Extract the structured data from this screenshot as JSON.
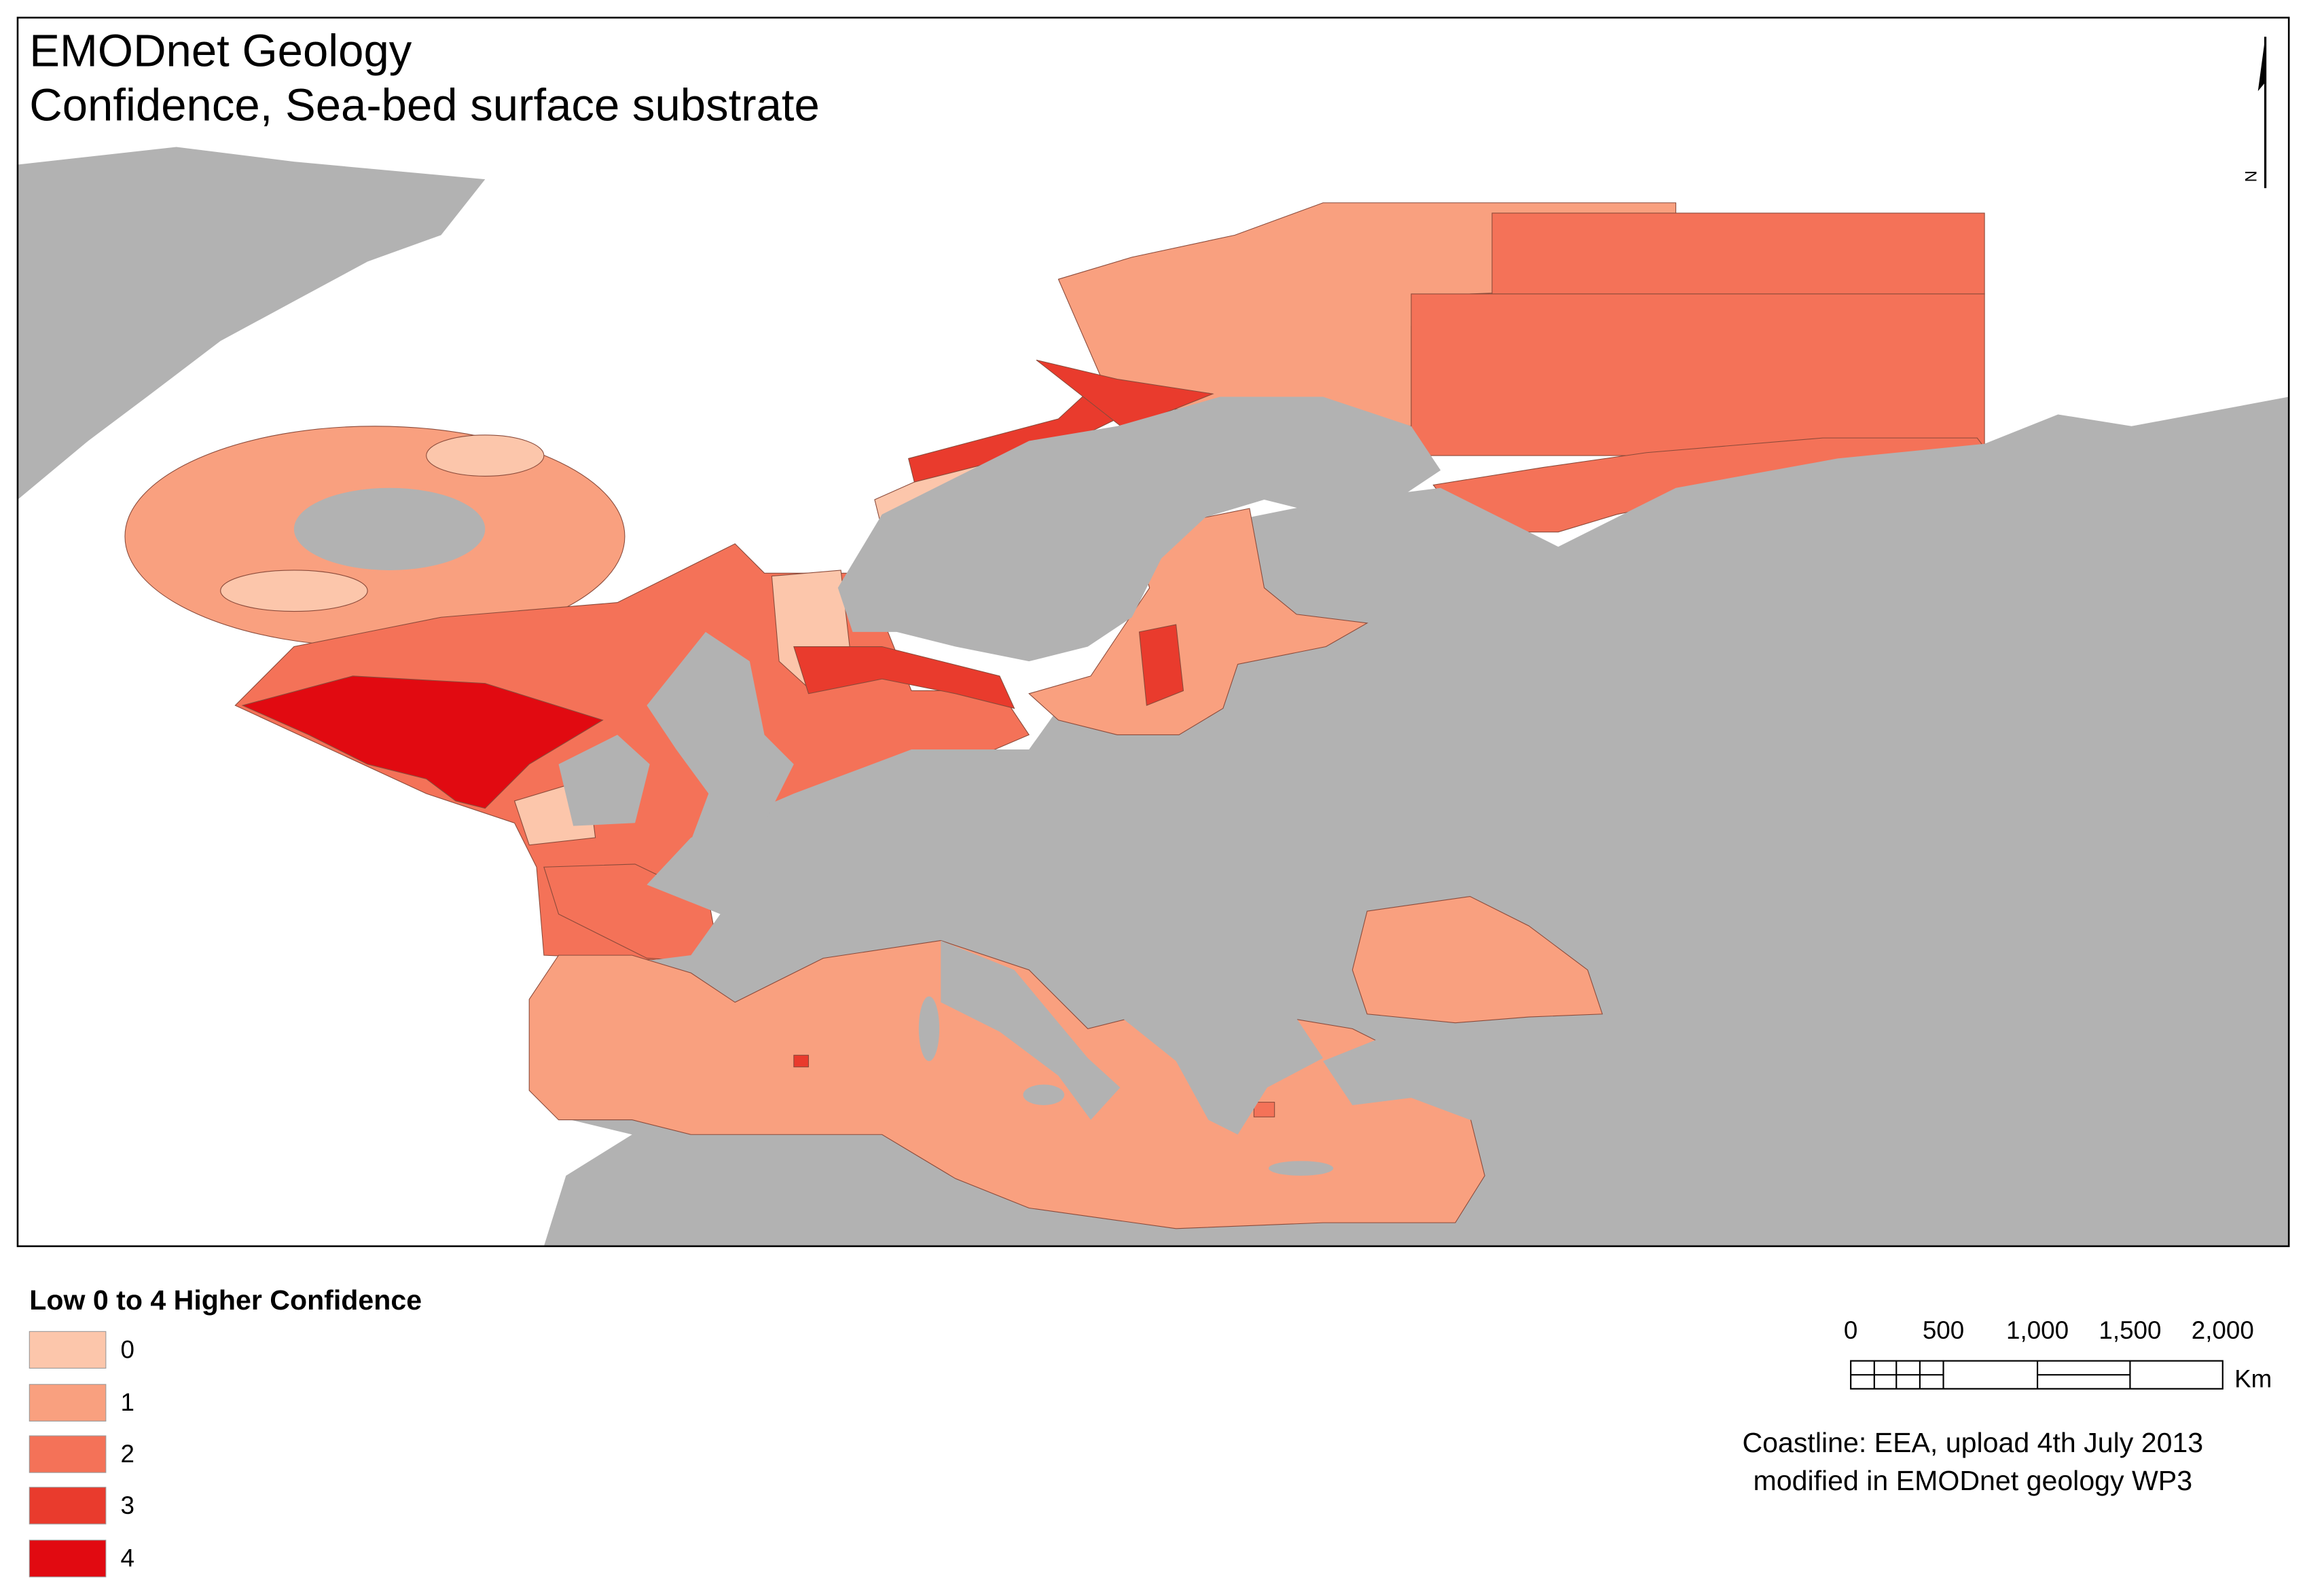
{
  "header": {
    "title": "EMODnet Geology",
    "subtitle": "Confidence, Sea-bed surface substrate"
  },
  "north_arrow": {
    "label": "N"
  },
  "legend": {
    "title": "Low 0 to 4 Higher Confidence",
    "items": [
      {
        "label": "0",
        "color": "#fcc6ab"
      },
      {
        "label": "1",
        "color": "#f9a07f"
      },
      {
        "label": "2",
        "color": "#f47258"
      },
      {
        "label": "3",
        "color": "#e93b2d"
      },
      {
        "label": "4",
        "color": "#e10a11"
      }
    ]
  },
  "scale_bar": {
    "labels": [
      "0",
      "500",
      "1,000",
      "1,500",
      "2,000"
    ],
    "unit": "Km"
  },
  "credits": [
    "Coastline: EEA, upload 4th July 2013",
    "modified in EMODnet geology WP3"
  ]
}
